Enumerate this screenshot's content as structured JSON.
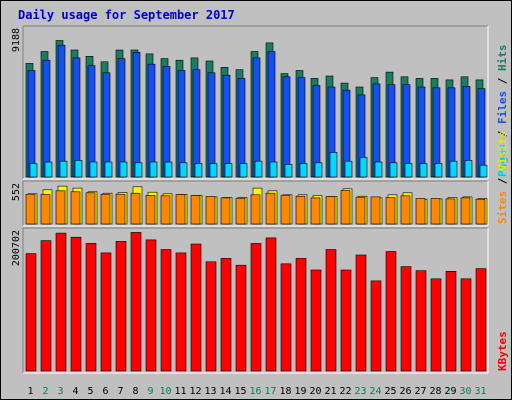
{
  "chart_data": {
    "type": "bar",
    "title": "Daily usage for September 2017",
    "days": [
      "1",
      "2",
      "3",
      "4",
      "5",
      "6",
      "7",
      "8",
      "9",
      "10",
      "11",
      "12",
      "13",
      "14",
      "15",
      "16",
      "17",
      "18",
      "19",
      "20",
      "21",
      "22",
      "23",
      "24",
      "25",
      "26",
      "27",
      "28",
      "29",
      "30",
      "31"
    ],
    "weekend_days": [
      "2",
      "3",
      "9",
      "10",
      "16",
      "17",
      "23",
      "24",
      "30",
      "31"
    ],
    "panels": [
      {
        "id": "top",
        "max_label": "9188",
        "ymax": 9188,
        "series": [
          {
            "name": "Hits",
            "color": "#197d64",
            "values": [
              7200,
              7950,
              8650,
              8050,
              7650,
              7300,
              8050,
              8050,
              7800,
              7500,
              7400,
              7550,
              7350,
              6950,
              6800,
              7950,
              8500,
              6550,
              6750,
              6250,
              6400,
              5950,
              5700,
              6300,
              6650,
              6350,
              6250,
              6250,
              6150,
              6350,
              6150
            ]
          },
          {
            "name": "Files",
            "color": "#1450f0",
            "values": [
              6750,
              7400,
              8350,
              7550,
              7050,
              6600,
              7500,
              7900,
              7150,
              7000,
              6750,
              6800,
              6600,
              6450,
              6250,
              7550,
              7950,
              6350,
              6300,
              5800,
              5700,
              5500,
              5200,
              5900,
              5850,
              5850,
              5700,
              5650,
              5650,
              5750,
              5600
            ]
          },
          {
            "name": "Pages",
            "color": "#00d8ff",
            "values": [
              850,
              950,
              1000,
              1050,
              950,
              950,
              950,
              900,
              950,
              950,
              900,
              850,
              850,
              850,
              850,
              1000,
              950,
              800,
              850,
              900,
              1550,
              1000,
              1250,
              950,
              900,
              850,
              850,
              850,
              1000,
              1050,
              750
            ]
          }
        ]
      },
      {
        "id": "middle",
        "max_label": "552",
        "ymax": 552,
        "series": [
          {
            "name": "Visits",
            "color": "#f8f800",
            "values": [
              450,
              510,
              565,
              535,
              480,
              460,
              470,
              555,
              475,
              450,
              440,
              425,
              405,
              395,
              395,
              535,
              495,
              435,
              435,
              425,
              410,
              525,
              415,
              390,
              435,
              465,
              370,
              375,
              395,
              405,
              380
            ]
          },
          {
            "name": "Sites",
            "color": "#ff8800",
            "values": [
              445,
              440,
              495,
              480,
              465,
              445,
              445,
              460,
              425,
              420,
              440,
              425,
              410,
              390,
              385,
              435,
              460,
              430,
              415,
              390,
              410,
              500,
              400,
              405,
              395,
              420,
              380,
              380,
              375,
              390,
              370
            ]
          }
        ]
      },
      {
        "id": "bottom",
        "max_label": "200702",
        "ymax": 200702,
        "series": [
          {
            "name": "KBytes",
            "color": "#ff0000",
            "values": [
              172000,
              191000,
              202000,
              196000,
              187000,
              173000,
              190000,
              203000,
              192000,
              178000,
              173000,
              186000,
              160000,
              165000,
              155000,
              187000,
              195000,
              157000,
              165000,
              148000,
              178000,
              148000,
              170000,
              132000,
              175000,
              153000,
              147000,
              135000,
              146000,
              135000,
              150000
            ]
          }
        ]
      }
    ],
    "side_labels": [
      {
        "panel": "top",
        "parts": [
          {
            "text": "Pages",
            "color": "#00c8ff"
          },
          {
            "text": " / ",
            "color": "#000000"
          },
          {
            "text": "Files",
            "color": "#1450f0"
          },
          {
            "text": " / ",
            "color": "#000000"
          },
          {
            "text": "Hits",
            "color": "#197d64"
          }
        ]
      },
      {
        "panel": "middle",
        "parts": [
          {
            "text": "Sites",
            "color": "#ff8800"
          },
          {
            "text": " / ",
            "color": "#000000"
          },
          {
            "text": "Visits",
            "color": "#e8e800"
          }
        ]
      },
      {
        "panel": "bottom",
        "parts": [
          {
            "text": "KBytes",
            "color": "#ff0000"
          }
        ]
      }
    ],
    "colors": {
      "background": "#c0c0c0",
      "panel": "#c0c0c0",
      "weekday_label": "#000000",
      "weekend_label": "#00805a",
      "title": "#0000cc"
    }
  }
}
